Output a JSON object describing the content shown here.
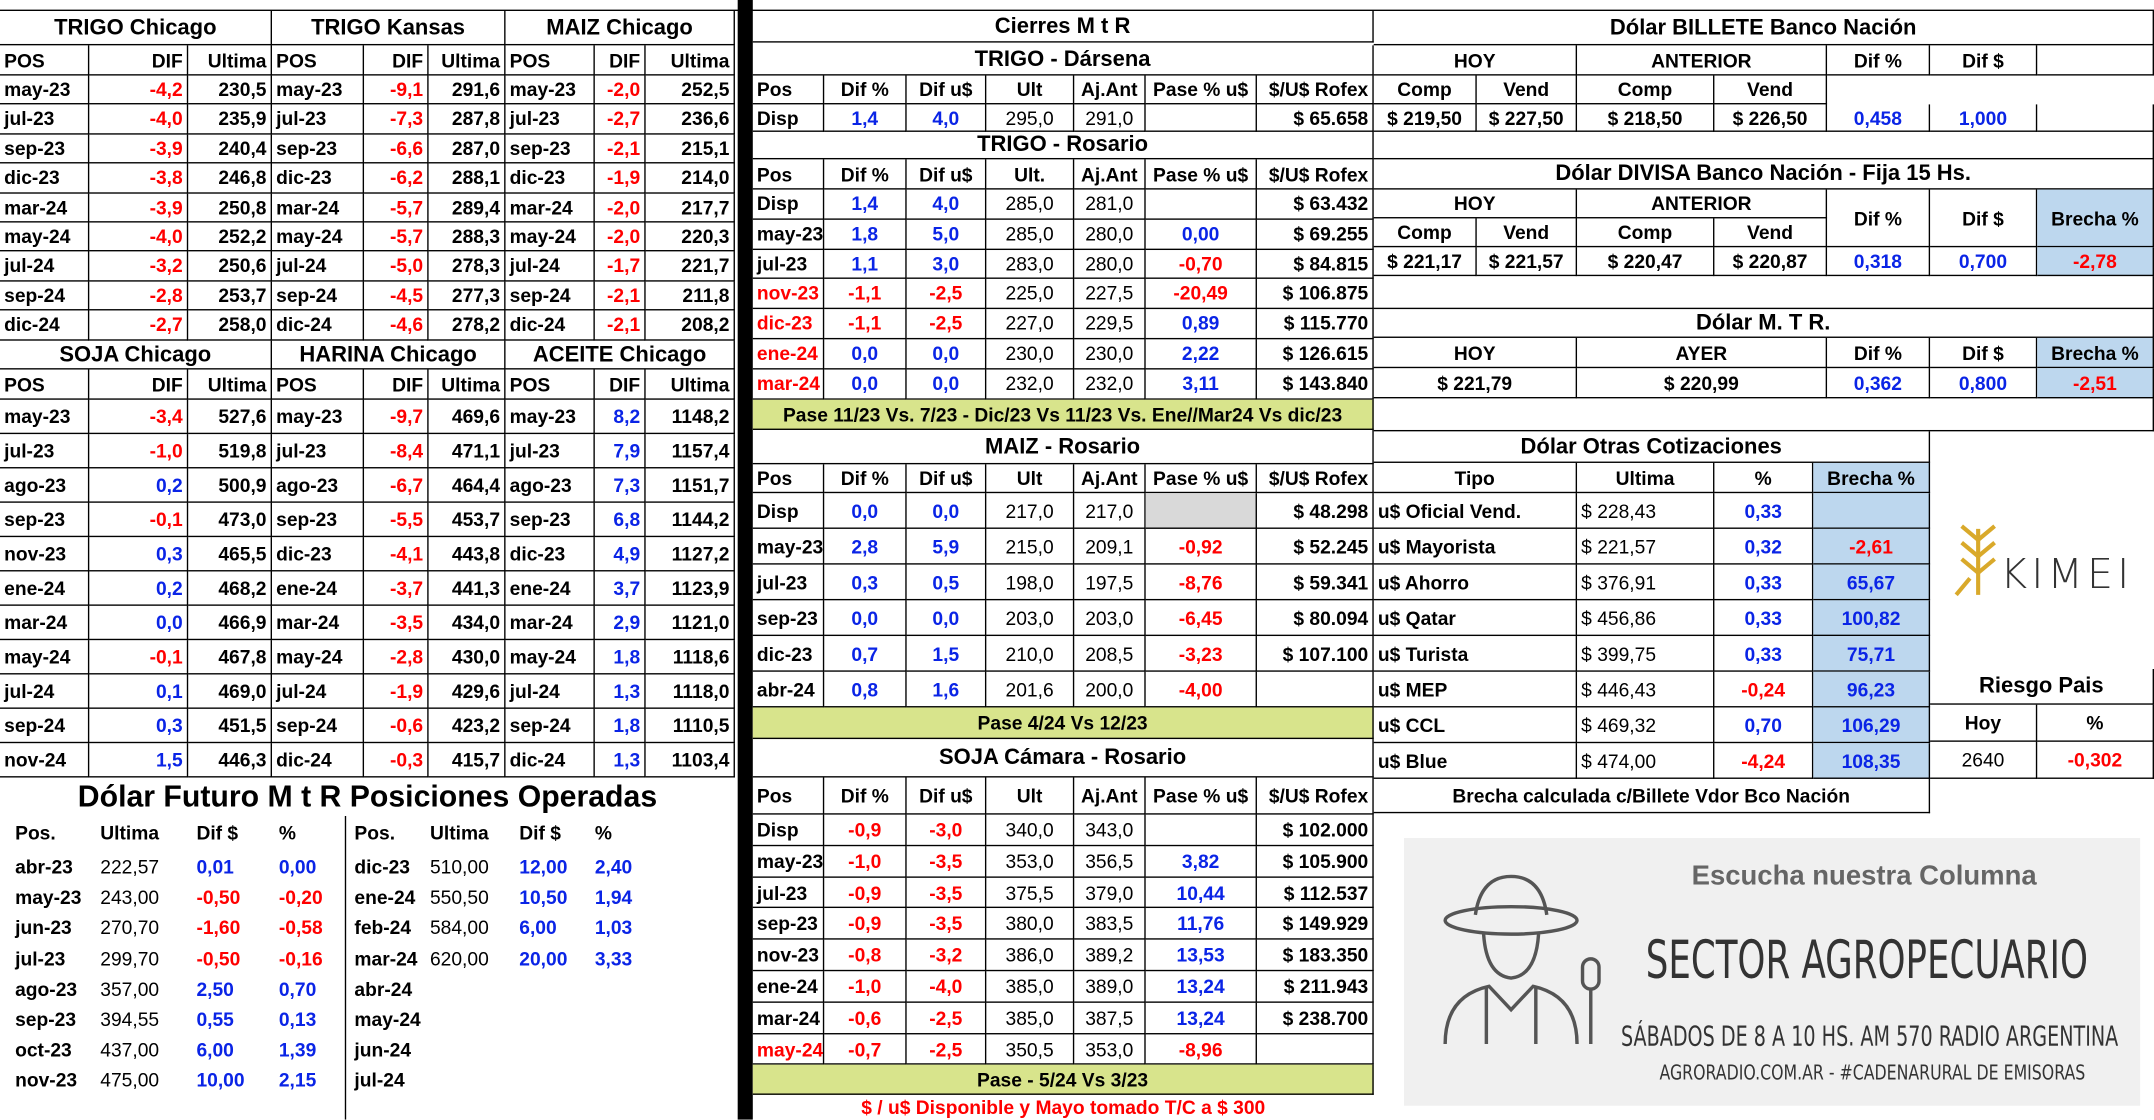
{
  "left": {
    "top_titles": [
      "TRIGO Chicago",
      "TRIGO Kansas",
      "MAIZ Chicago"
    ],
    "top_header": [
      "POS",
      "DIF",
      "Ultima",
      "POS",
      "DIF",
      "Ultima",
      "POS",
      "DIF",
      "Ultima"
    ],
    "top_rows": [
      [
        "may-23",
        "-4,2",
        "230,5",
        "may-23",
        "-9,1",
        "291,6",
        "may-23",
        "-2,0",
        "252,5"
      ],
      [
        "jul-23",
        "-4,0",
        "235,9",
        "jul-23",
        "-7,3",
        "287,8",
        "jul-23",
        "-2,7",
        "236,6"
      ],
      [
        "sep-23",
        "-3,9",
        "240,4",
        "sep-23",
        "-6,6",
        "287,0",
        "sep-23",
        "-2,1",
        "215,1"
      ],
      [
        "dic-23",
        "-3,8",
        "246,8",
        "dic-23",
        "-6,2",
        "288,1",
        "dic-23",
        "-1,9",
        "214,0"
      ],
      [
        "mar-24",
        "-3,9",
        "250,8",
        "mar-24",
        "-5,7",
        "289,4",
        "mar-24",
        "-2,0",
        "217,7"
      ],
      [
        "may-24",
        "-4,0",
        "252,2",
        "may-24",
        "-5,7",
        "288,3",
        "may-24",
        "-2,0",
        "220,3"
      ],
      [
        "jul-24",
        "-3,2",
        "250,6",
        "jul-24",
        "-5,0",
        "278,3",
        "jul-24",
        "-1,7",
        "221,7"
      ],
      [
        "sep-24",
        "-2,8",
        "253,7",
        "sep-24",
        "-4,5",
        "277,3",
        "sep-24",
        "-2,1",
        "211,8"
      ],
      [
        "dic-24",
        "-2,7",
        "258,0",
        "dic-24",
        "-4,6",
        "278,2",
        "dic-24",
        "-2,1",
        "208,2"
      ]
    ],
    "bottom_titles": [
      "SOJA Chicago",
      "HARINA Chicago",
      "ACEITE Chicago"
    ],
    "bottom_header": [
      "POS",
      "DIF",
      "Ultima",
      "POS",
      "DIF",
      "Ultima",
      "POS",
      "DIF",
      "Ultima"
    ],
    "bottom_rows": [
      [
        "may-23",
        "-3,4",
        "527,6",
        "may-23",
        "-9,7",
        "469,6",
        "may-23",
        "8,2",
        "1148,2"
      ],
      [
        "jul-23",
        "-1,0",
        "519,8",
        "jul-23",
        "-8,4",
        "471,1",
        "jul-23",
        "7,9",
        "1157,4"
      ],
      [
        "ago-23",
        "0,2",
        "500,9",
        "ago-23",
        "-6,7",
        "464,4",
        "ago-23",
        "7,3",
        "1151,7"
      ],
      [
        "sep-23",
        "-0,1",
        "473,0",
        "sep-23",
        "-5,5",
        "453,7",
        "sep-23",
        "6,8",
        "1144,2"
      ],
      [
        "nov-23",
        "0,3",
        "465,5",
        "dic-23",
        "-4,1",
        "443,8",
        "dic-23",
        "4,9",
        "1127,2"
      ],
      [
        "ene-24",
        "0,2",
        "468,2",
        "ene-24",
        "-3,7",
        "441,3",
        "ene-24",
        "3,7",
        "1123,9"
      ],
      [
        "mar-24",
        "0,0",
        "466,9",
        "mar-24",
        "-3,5",
        "434,0",
        "mar-24",
        "2,9",
        "1121,0"
      ],
      [
        "may-24",
        "-0,1",
        "467,8",
        "may-24",
        "-2,8",
        "430,0",
        "may-24",
        "1,8",
        "1118,6"
      ],
      [
        "jul-24",
        "0,1",
        "469,0",
        "jul-24",
        "-1,9",
        "429,6",
        "jul-24",
        "1,3",
        "1118,0"
      ],
      [
        "sep-24",
        "0,3",
        "451,5",
        "sep-24",
        "-0,6",
        "423,2",
        "sep-24",
        "1,8",
        "1110,5"
      ],
      [
        "nov-24",
        "1,5",
        "446,3",
        "dic-24",
        "-0,3",
        "415,7",
        "dic-24",
        "1,3",
        "1103,4"
      ]
    ]
  },
  "futuro": {
    "title": "Dólar Futuro M t R  Posiciones Operadas",
    "header": [
      "Pos.",
      "Ultima",
      "Dif $",
      "%",
      "Pos.",
      "Ultima",
      "Dif $",
      "%"
    ],
    "rows": [
      [
        "abr-23",
        "222,57",
        "0,01",
        "0,00",
        "dic-23",
        "510,00",
        "12,00",
        "2,40"
      ],
      [
        "may-23",
        "243,00",
        "-0,50",
        "-0,20",
        "ene-24",
        "550,50",
        "10,50",
        "1,94"
      ],
      [
        "jun-23",
        "270,70",
        "-1,60",
        "-0,58",
        "feb-24",
        "584,00",
        "6,00",
        "1,03"
      ],
      [
        "jul-23",
        "299,70",
        "-0,50",
        "-0,16",
        "mar-24",
        "620,00",
        "20,00",
        "3,33"
      ],
      [
        "ago-23",
        "357,00",
        "2,50",
        "0,70",
        "abr-24"
      ],
      [
        "sep-23",
        "394,55",
        "0,55",
        "0,13",
        "may-24"
      ],
      [
        "oct-23",
        "437,00",
        "6,00",
        "1,39",
        "jun-24"
      ],
      [
        "nov-23",
        "475,00",
        "10,00",
        "2,15",
        "jul-24"
      ]
    ]
  },
  "cierres": {
    "title": "Cierres M  t  R",
    "trigo_darsena": {
      "title": "TRIGO - Dársena",
      "header": [
        "Pos",
        "Dif %",
        "Dif u$",
        "Ult",
        "Aj.Ant",
        "Pase % u$",
        "$/U$ Rofex"
      ],
      "rows": [
        [
          "Disp",
          "1,4",
          "4,0",
          "295,0",
          "291,0",
          null,
          "$ 65.658"
        ]
      ]
    },
    "trigo_rosario": {
      "title": "TRIGO - Rosario",
      "header": [
        "Pos",
        "Dif %",
        "Dif u$",
        "Ult.",
        "Aj.Ant",
        "Pase % u$",
        "$/U$ Rofex"
      ],
      "rows": [
        [
          "Disp",
          "1,4",
          "4,0",
          "285,0",
          "281,0",
          null,
          "$ 63.432"
        ],
        [
          "may-23",
          "1,8",
          "5,0",
          "285,0",
          "280,0",
          "0,00",
          "$ 69.255"
        ],
        [
          "jul-23",
          "1,1",
          "3,0",
          "283,0",
          "280,0",
          "-0,70",
          "$ 84.815"
        ],
        [
          "nov-23",
          "-1,1",
          "-2,5",
          "225,0",
          "227,5",
          "-20,49",
          "$ 106.875"
        ],
        [
          "dic-23",
          "-1,1",
          "-2,5",
          "227,0",
          "229,5",
          "0,89",
          "$ 115.770"
        ],
        [
          "ene-24",
          "0,0",
          "0,0",
          "230,0",
          "230,0",
          "2,22",
          "$ 126.615"
        ],
        [
          "mar-24",
          "0,0",
          "0,0",
          "232,0",
          "232,0",
          "3,11",
          "$ 143.840"
        ]
      ],
      "note": "Pase 11/23  Vs. 7/23 - Dic/23 Vs 11/23 Vs.  Ene//Mar24 Vs dic/23"
    },
    "maiz_rosario": {
      "title": "MAIZ - Rosario",
      "header": [
        "Pos",
        "Dif %",
        "Dif u$",
        "Ult",
        "Aj.Ant",
        "Pase % u$",
        "$/U$ Rofex"
      ],
      "rows": [
        [
          "Disp",
          "0,0",
          "0,0",
          "217,0",
          "217,0",
          null,
          "$ 48.298"
        ],
        [
          "may-23",
          "2,8",
          "5,9",
          "215,0",
          "209,1",
          "-0,92",
          "$ 52.245"
        ],
        [
          "jul-23",
          "0,3",
          "0,5",
          "198,0",
          "197,5",
          "-8,76",
          "$ 59.341"
        ],
        [
          "sep-23",
          "0,0",
          "0,0",
          "203,0",
          "203,0",
          "-6,45",
          "$ 80.094"
        ],
        [
          "dic-23",
          "0,7",
          "1,5",
          "210,0",
          "208,5",
          "-3,23",
          "$ 107.100"
        ],
        [
          "abr-24",
          "0,8",
          "1,6",
          "201,6",
          "200,0",
          "-4,00",
          null
        ]
      ],
      "note": "Pase 4/24 Vs 12/23"
    },
    "soja_rosario": {
      "title": "SOJA Cámara - Rosario",
      "header": [
        "Pos",
        "Dif %",
        "Dif u$",
        "Ult",
        "Aj.Ant",
        "Pase % u$",
        "$/U$ Rofex"
      ],
      "rows": [
        [
          "Disp",
          "-0,9",
          "-3,0",
          "340,0",
          "343,0",
          null,
          "$ 102.000"
        ],
        [
          "may-23",
          "-1,0",
          "-3,5",
          "353,0",
          "356,5",
          "3,82",
          "$ 105.900"
        ],
        [
          "jul-23",
          "-0,9",
          "-3,5",
          "375,5",
          "379,0",
          "10,44",
          "$ 112.537"
        ],
        [
          "sep-23",
          "-0,9",
          "-3,5",
          "380,0",
          "383,5",
          "11,76",
          "$ 149.929"
        ],
        [
          "nov-23",
          "-0,8",
          "-3,2",
          "386,0",
          "389,2",
          "13,53",
          "$ 183.350"
        ],
        [
          "ene-24",
          "-1,0",
          "-4,0",
          "385,0",
          "389,0",
          "13,24",
          "$ 211.943"
        ],
        [
          "mar-24",
          "-0,6",
          "-2,5",
          "385,0",
          "387,5",
          "13,24",
          "$ 238.700"
        ],
        [
          "may-24",
          "-0,7",
          "-2,5",
          "350,5",
          "353,0",
          "-8,96",
          null
        ]
      ],
      "note": "Pase  - 5/24  Vs   3/23"
    },
    "footnote": "$ / u$  Disponible y Mayo tomado T/C a $ 300"
  },
  "billete": {
    "title": "Dólar BILLETE Banco Nación",
    "header": [
      "HOY",
      "ANTERIOR",
      "Dif %",
      "Dif $"
    ],
    "sub": [
      "Comp",
      "Vend",
      "Comp",
      "Vend"
    ],
    "row": [
      "$ 219,50",
      "$ 227,50",
      "$ 218,50",
      "$ 226,50",
      "0,458",
      "1,000"
    ]
  },
  "divisa": {
    "title": "Dólar DIVISA Banco Nación - Fija 15 Hs.",
    "header": [
      "HOY",
      "ANTERIOR"
    ],
    "header_right": [
      "Dif %",
      "Dif $",
      "Brecha %"
    ],
    "sub": [
      "Comp",
      "Vend",
      "Comp",
      "Vend"
    ],
    "row": [
      "$ 221,17",
      "$ 221,57",
      "$ 220,47",
      "$ 220,87",
      "0,318",
      "0,700",
      "-2,78"
    ]
  },
  "mtr": {
    "title": "Dólar  M.  T R.",
    "header": [
      "HOY",
      "AYER",
      "Dif %",
      "Dif $",
      "Brecha %"
    ],
    "row": [
      "$ 221,79",
      "$ 220,99",
      "0,362",
      "0,800",
      "-2,51"
    ]
  },
  "otras": {
    "title": "Dólar Otras Cotizaciones",
    "header": [
      "Tipo",
      "Ultima",
      "%",
      "Brecha %"
    ],
    "rows": [
      [
        "u$ Oficial Vend.",
        "$ 228,43",
        "0,33",
        null
      ],
      [
        "u$ Mayorista",
        "$ 221,57",
        "0,32",
        "-2,61"
      ],
      [
        "u$ Ahorro",
        "$ 376,91",
        "0,33",
        "65,67"
      ],
      [
        "u$ Qatar",
        "$ 456,86",
        "0,33",
        "100,82"
      ],
      [
        "u$ Turista",
        "$ 399,75",
        "0,33",
        "75,71"
      ],
      [
        "u$ MEP",
        "$ 446,43",
        "-0,24",
        "96,23"
      ],
      [
        "u$ CCL",
        "$ 469,32",
        "0,70",
        "106,29"
      ],
      [
        "u$ Blue",
        "$ 474,00",
        "-4,24",
        "108,35"
      ]
    ],
    "note": "Brecha calculada c/Billete Vdor Bco Nación"
  },
  "riesgo": {
    "title": "Riesgo Pais",
    "header": [
      "Hoy",
      "%"
    ],
    "row": [
      "2640",
      "-0,302"
    ]
  },
  "logo": {
    "text": "KIMEI"
  },
  "radio": {
    "heading": "Escucha nuestra Columna",
    "program": "SECTOR AGROPECUARIO",
    "schedule": "SÁBADOS DE 8 A 10 HS.  AM 570 RADIO ARGENTINA",
    "web": "AGRORADIO.COM.AR  -  #CADENARURAL DE EMISORAS"
  }
}
